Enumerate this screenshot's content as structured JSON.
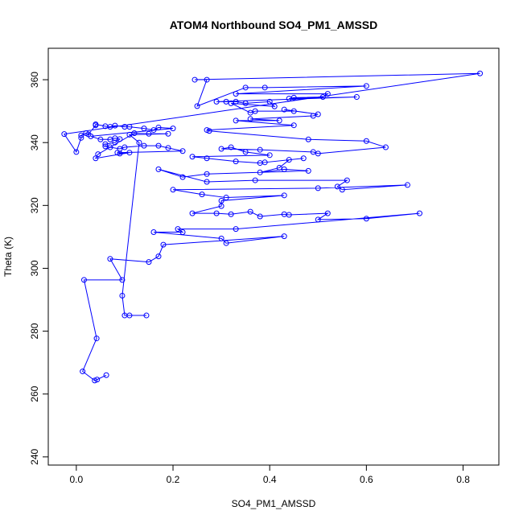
{
  "chart_data": {
    "type": "line",
    "title": "ATOM4 Northbound SO4_PM1_AMSSD",
    "xlabel": "SO4_PM1_AMSSD",
    "ylabel": "Theta (K)",
    "color": "#0000ff",
    "markers": true,
    "x": [
      0.062,
      0.043,
      0.038,
      0.013,
      0.042,
      0.016,
      0.095,
      0.07,
      0.15,
      0.17,
      0.18,
      0.43,
      0.31,
      0.3,
      0.16,
      0.22,
      0.21,
      0.33,
      0.71,
      0.6,
      0.5,
      0.52,
      0.44,
      0.43,
      0.38,
      0.36,
      0.32,
      0.29,
      0.24,
      0.3,
      0.3,
      0.43,
      0.31,
      0.26,
      0.2,
      0.5,
      0.685,
      0.55,
      0.54,
      0.56,
      0.37,
      0.27,
      0.17,
      0.22,
      0.27,
      0.48,
      0.43,
      0.38,
      0.42,
      0.44,
      0.47,
      0.39,
      0.38,
      0.33,
      0.27,
      0.24,
      0.4,
      0.35,
      0.32,
      0.3,
      0.38,
      0.49,
      0.5,
      0.64,
      0.6,
      0.48,
      0.275,
      0.27,
      0.45,
      0.33,
      0.42,
      0.36,
      0.49,
      0.5,
      0.43,
      0.45,
      0.37,
      0.36,
      0.32,
      0.41,
      0.4,
      0.35,
      0.33,
      0.31,
      0.29,
      0.58,
      0.44,
      0.45,
      0.51,
      0.52,
      0.33,
      0.6,
      0.39,
      0.35,
      0.25,
      0.27,
      0.245,
      0.835,
      -0.025,
      0.0,
      0.01,
      0.01,
      0.02,
      0.025,
      0.04,
      0.04,
      0.06,
      0.07,
      0.08,
      0.1,
      0.11,
      0.14,
      0.16,
      0.17,
      0.2,
      0.03,
      0.05,
      0.07,
      0.08,
      0.09,
      0.08,
      0.06,
      0.06,
      0.07,
      0.09,
      0.1,
      0.14,
      0.17,
      0.19,
      0.22,
      0.085,
      0.09,
      0.11,
      0.04,
      0.045,
      0.12,
      0.15,
      0.19,
      0.11,
      0.13,
      0.095,
      0.1,
      0.11,
      0.145
    ],
    "values": [
      266,
      264.6,
      264.3,
      267.2,
      277.7,
      296.3,
      296.3,
      303,
      302,
      303.8,
      307.5,
      310.2,
      308,
      309.5,
      311.5,
      311.5,
      312.5,
      312.5,
      317.5,
      315.8,
      315.5,
      317.5,
      317,
      317.2,
      316.5,
      318,
      317.2,
      317.5,
      317.5,
      319.8,
      321.5,
      323.2,
      322.5,
      323.5,
      325,
      325.5,
      326.5,
      325,
      326,
      328,
      328,
      327.5,
      331.5,
      329,
      330,
      331,
      331.5,
      330.5,
      332,
      334.5,
      335,
      333.7,
      333.5,
      334,
      335,
      335.5,
      336,
      337,
      338.5,
      338,
      337.7,
      337,
      336.5,
      338.5,
      340.5,
      341,
      343.7,
      344,
      345.5,
      347,
      347,
      347.5,
      348.5,
      349,
      350.5,
      350,
      350,
      349.5,
      352.5,
      351.5,
      353,
      352.5,
      353,
      353,
      353,
      354.5,
      354,
      354.3,
      354.5,
      355.5,
      355.5,
      358,
      357.5,
      357.5,
      351.6,
      360,
      360,
      362,
      342.7,
      337,
      341.5,
      342.3,
      343,
      342.6,
      345.5,
      345.8,
      345.2,
      345,
      345.4,
      345,
      345,
      344.5,
      344,
      344.8,
      344.5,
      342,
      341,
      341,
      341.4,
      341.1,
      340,
      339.5,
      338.8,
      338.5,
      338,
      338.5,
      339,
      339,
      338.3,
      337.3,
      336.8,
      336.5,
      336.8,
      335,
      336.3,
      343,
      342.8,
      342.8,
      342.5,
      340,
      291.3,
      285,
      285,
      285
    ],
    "xlim": [
      -0.058,
      0.874
    ],
    "ylim": [
      237.4,
      370
    ],
    "xticks": [
      {
        "value": 0,
        "label": "0.0"
      },
      0.2,
      0.4,
      0.6,
      0.8
    ],
    "yticks": [
      240,
      260,
      280,
      300,
      320,
      340,
      360
    ]
  }
}
